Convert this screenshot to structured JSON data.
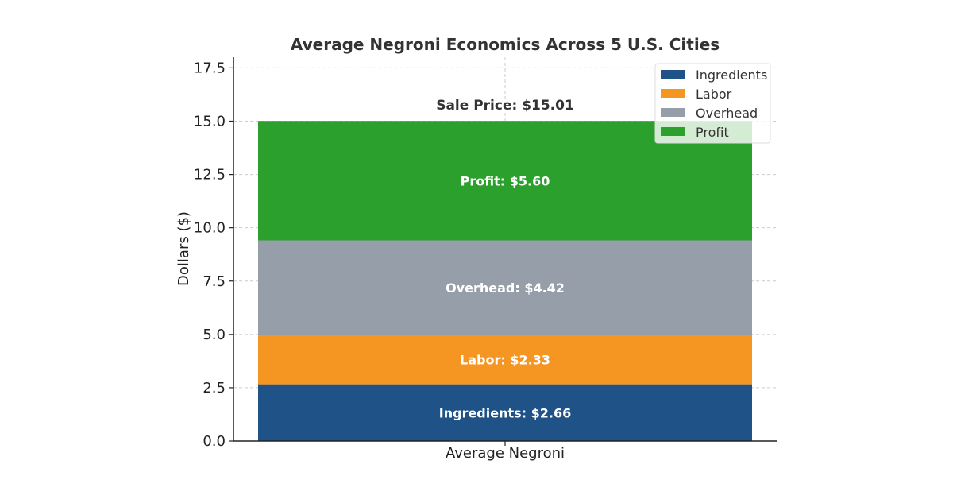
{
  "chart_data": {
    "type": "bar",
    "stacked": true,
    "title": "Average Negroni Economics Across 5 U.S. Cities",
    "ylabel": "Dollars ($)",
    "xlabel": "",
    "categories": [
      "Average Negroni"
    ],
    "ylim": [
      0,
      18
    ],
    "yticks": [
      0.0,
      2.5,
      5.0,
      7.5,
      10.0,
      12.5,
      15.0,
      17.5
    ],
    "ytick_labels": [
      "0.0",
      "2.5",
      "5.0",
      "7.5",
      "10.0",
      "12.5",
      "15.0",
      "17.5"
    ],
    "grid": true,
    "legend_position": "top-right",
    "series": [
      {
        "name": "Ingredients",
        "values": [
          2.66
        ],
        "color": "#1f5286",
        "label": "Ingredients: $2.66"
      },
      {
        "name": "Labor",
        "values": [
          2.33
        ],
        "color": "#f59622",
        "label": "Labor: $2.33"
      },
      {
        "name": "Overhead",
        "values": [
          4.42
        ],
        "color": "#959ea9",
        "label": "Overhead: $4.42"
      },
      {
        "name": "Profit",
        "values": [
          5.6
        ],
        "color": "#2ca02c",
        "label": "Profit: $5.60"
      }
    ],
    "total": 15.01,
    "total_label": "Sale Price: $15.01"
  }
}
